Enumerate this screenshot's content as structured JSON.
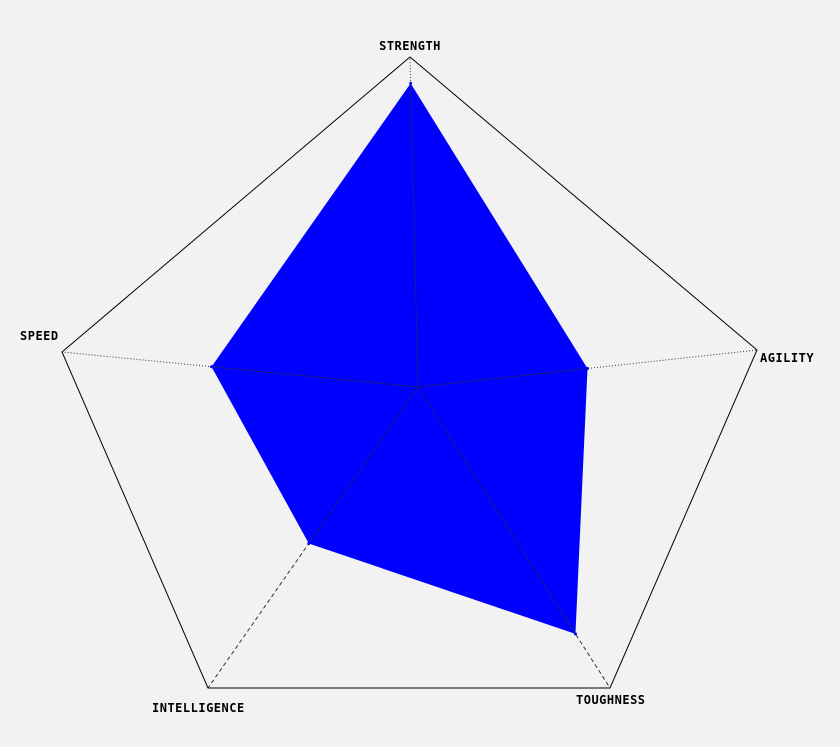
{
  "chart_data": {
    "type": "radar",
    "title": "",
    "axes": [
      "STRENGTH",
      "AGILITY",
      "TOUGHNESS",
      "INTELLIGENCE",
      "SPEED"
    ],
    "series": [
      {
        "values": [
          0.92,
          0.5,
          0.82,
          0.52,
          0.58
        ]
      }
    ],
    "range": [
      0,
      1
    ],
    "colors": {
      "fill": "#0000ff",
      "outline": "#000000",
      "background": "#f2f2f2"
    },
    "grid": true,
    "legend": "none"
  }
}
